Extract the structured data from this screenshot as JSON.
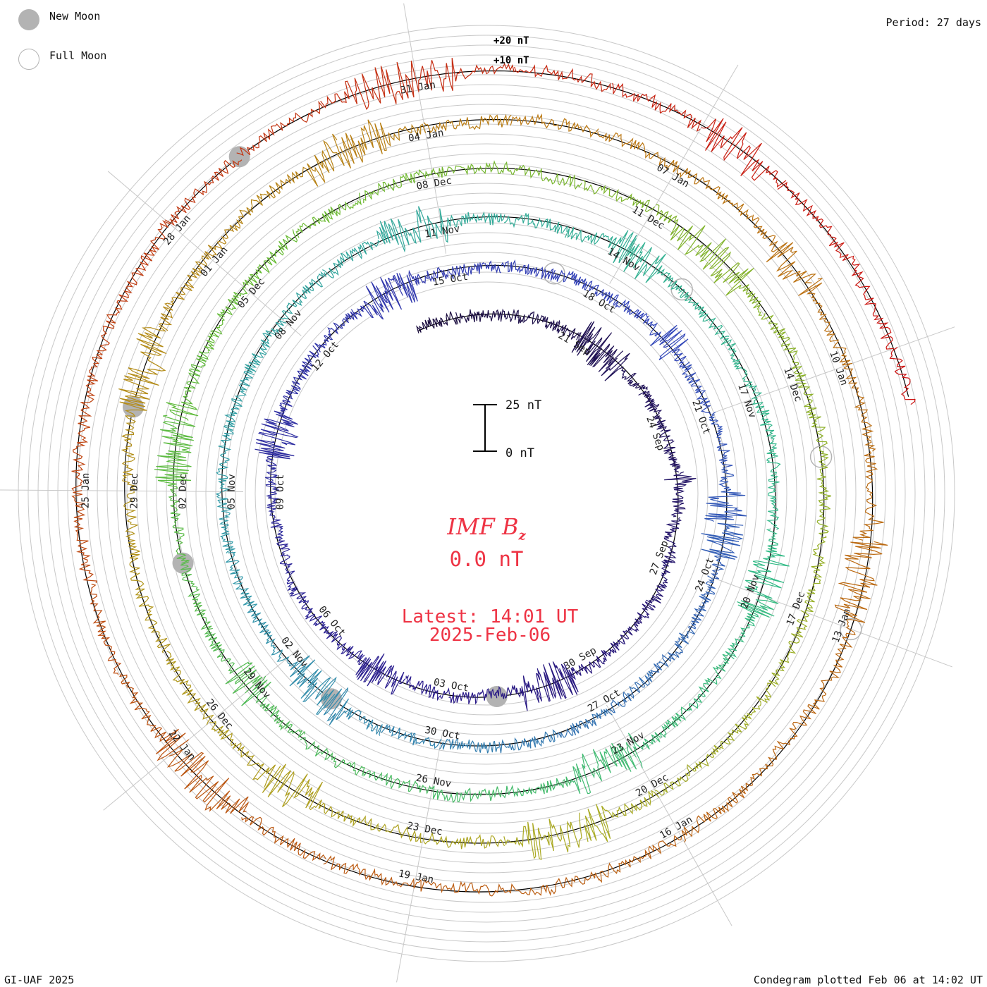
{
  "legend": {
    "new_moon": "New Moon",
    "full_moon": "Full Moon"
  },
  "period_label": "Period: 27 days",
  "credit": "GI-UAF 2025",
  "plotted": "Condegram plotted Feb 06 at 14:02 UT",
  "center": {
    "title": "IMF B",
    "title_sub": "z",
    "value": "0.0 nT",
    "latest": "Latest: 14:01 UT",
    "date": "2025-Feb-06"
  },
  "chart_data": {
    "type": "line",
    "subtype": "condegram-spiral",
    "quantity": "IMF Bz",
    "unit": "nT",
    "period_days": 27,
    "start_date": "2024-09-17",
    "end_date": "2025-02-06",
    "scale_bar": {
      "top_label": "25 nT",
      "bottom_label": "0 nT"
    },
    "reference_labels": [
      "+20 nT",
      "+10 nT"
    ],
    "date_labels": [
      {
        "date": "2024-09-21",
        "label": "21 Sep"
      },
      {
        "date": "2024-09-24",
        "label": "24 Sep"
      },
      {
        "date": "2024-09-27",
        "label": "27 Sep"
      },
      {
        "date": "2024-09-30",
        "label": "30 Sep"
      },
      {
        "date": "2024-10-03",
        "label": "03 Oct"
      },
      {
        "date": "2024-10-06",
        "label": "06 Oct"
      },
      {
        "date": "2024-10-09",
        "label": "09 Oct"
      },
      {
        "date": "2024-10-12",
        "label": "12 Oct"
      },
      {
        "date": "2024-10-15",
        "label": "15 Oct"
      },
      {
        "date": "2024-10-18",
        "label": "18 Oct"
      },
      {
        "date": "2024-10-21",
        "label": "21 Oct"
      },
      {
        "date": "2024-10-24",
        "label": "24 Oct"
      },
      {
        "date": "2024-10-27",
        "label": "27 Oct"
      },
      {
        "date": "2024-10-30",
        "label": "30 Oct"
      },
      {
        "date": "2024-11-02",
        "label": "02 Nov"
      },
      {
        "date": "2024-11-05",
        "label": "05 Nov"
      },
      {
        "date": "2024-11-08",
        "label": "08 Nov"
      },
      {
        "date": "2024-11-11",
        "label": "11 Nov"
      },
      {
        "date": "2024-11-14",
        "label": "14 Nov"
      },
      {
        "date": "2024-11-17",
        "label": "17 Nov"
      },
      {
        "date": "2024-11-20",
        "label": "20 Nov"
      },
      {
        "date": "2024-11-23",
        "label": "23 Nov"
      },
      {
        "date": "2024-11-26",
        "label": "26 Nov"
      },
      {
        "date": "2024-11-29",
        "label": "29 Nov"
      },
      {
        "date": "2024-12-02",
        "label": "02 Dec"
      },
      {
        "date": "2024-12-05",
        "label": "05 Dec"
      },
      {
        "date": "2024-12-08",
        "label": "08 Dec"
      },
      {
        "date": "2024-12-11",
        "label": "11 Dec"
      },
      {
        "date": "2024-12-14",
        "label": "14 Dec"
      },
      {
        "date": "2024-12-17",
        "label": "17 Dec"
      },
      {
        "date": "2024-12-20",
        "label": "20 Dec"
      },
      {
        "date": "2024-12-23",
        "label": "23 Dec"
      },
      {
        "date": "2024-12-26",
        "label": "26 Dec"
      },
      {
        "date": "2024-12-29",
        "label": "29 Dec"
      },
      {
        "date": "2025-01-01",
        "label": "01 Jan"
      },
      {
        "date": "2025-01-04",
        "label": "04 Jan"
      },
      {
        "date": "2025-01-07",
        "label": "07 Jan"
      },
      {
        "date": "2025-01-10",
        "label": "10 Jan"
      },
      {
        "date": "2025-01-13",
        "label": "13 Jan"
      },
      {
        "date": "2025-01-16",
        "label": "16 Jan"
      },
      {
        "date": "2025-01-19",
        "label": "19 Jan"
      },
      {
        "date": "2025-01-22",
        "label": "22 Jan"
      },
      {
        "date": "2025-01-25",
        "label": "25 Jan"
      },
      {
        "date": "2025-01-28",
        "label": "28 Jan"
      },
      {
        "date": "2025-01-31",
        "label": "31 Jan"
      }
    ],
    "moon_phases": [
      {
        "type": "new",
        "date": "2024-10-02"
      },
      {
        "type": "full",
        "date": "2024-10-17"
      },
      {
        "type": "new",
        "date": "2024-11-01"
      },
      {
        "type": "full",
        "date": "2024-11-15"
      },
      {
        "type": "new",
        "date": "2024-12-01"
      },
      {
        "type": "full",
        "date": "2024-12-15"
      },
      {
        "type": "new",
        "date": "2024-12-30"
      },
      {
        "type": "full",
        "date": "2025-01-13"
      },
      {
        "type": "new",
        "date": "2025-01-29"
      }
    ],
    "colors": [
      "#1a0d3d",
      "#2a1a8a",
      "#3344bb",
      "#3399aa",
      "#33bb88",
      "#66bb33",
      "#aaaa22",
      "#bb7711",
      "#bb5511",
      "#cc1111"
    ],
    "latest_value_nT": 0.0
  }
}
